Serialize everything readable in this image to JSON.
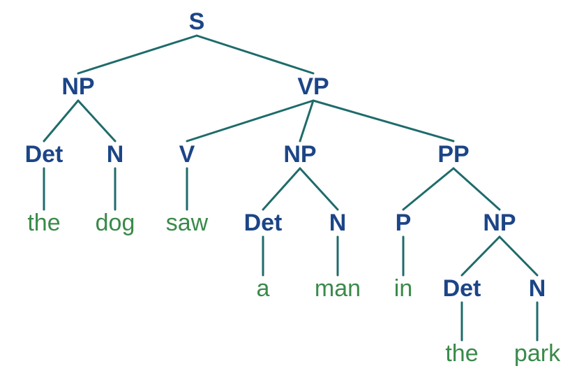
{
  "tree": {
    "nodes": [
      {
        "id": "s",
        "label": "S",
        "kind": "category"
      },
      {
        "id": "np1",
        "label": "NP",
        "kind": "category"
      },
      {
        "id": "vp",
        "label": "VP",
        "kind": "category"
      },
      {
        "id": "det1",
        "label": "Det",
        "kind": "category"
      },
      {
        "id": "n1",
        "label": "N",
        "kind": "category"
      },
      {
        "id": "v",
        "label": "V",
        "kind": "category"
      },
      {
        "id": "np2",
        "label": "NP",
        "kind": "category"
      },
      {
        "id": "pp",
        "label": "PP",
        "kind": "category"
      },
      {
        "id": "w_the1",
        "label": "the",
        "kind": "word"
      },
      {
        "id": "w_dog",
        "label": "dog",
        "kind": "word"
      },
      {
        "id": "w_saw",
        "label": "saw",
        "kind": "word"
      },
      {
        "id": "det2",
        "label": "Det",
        "kind": "category"
      },
      {
        "id": "n2",
        "label": "N",
        "kind": "category"
      },
      {
        "id": "p",
        "label": "P",
        "kind": "category"
      },
      {
        "id": "np3",
        "label": "NP",
        "kind": "category"
      },
      {
        "id": "w_a",
        "label": "a",
        "kind": "word"
      },
      {
        "id": "w_man",
        "label": "man",
        "kind": "word"
      },
      {
        "id": "w_in",
        "label": "in",
        "kind": "word"
      },
      {
        "id": "det3",
        "label": "Det",
        "kind": "category"
      },
      {
        "id": "n3",
        "label": "N",
        "kind": "category"
      },
      {
        "id": "w_the2",
        "label": "the",
        "kind": "word"
      },
      {
        "id": "w_park",
        "label": "park",
        "kind": "word"
      }
    ],
    "edges": [
      [
        "s",
        "np1"
      ],
      [
        "s",
        "vp"
      ],
      [
        "np1",
        "det1"
      ],
      [
        "np1",
        "n1"
      ],
      [
        "vp",
        "v"
      ],
      [
        "vp",
        "np2"
      ],
      [
        "vp",
        "pp"
      ],
      [
        "det1",
        "w_the1"
      ],
      [
        "n1",
        "w_dog"
      ],
      [
        "v",
        "w_saw"
      ],
      [
        "np2",
        "det2"
      ],
      [
        "np2",
        "n2"
      ],
      [
        "pp",
        "p"
      ],
      [
        "pp",
        "np3"
      ],
      [
        "det2",
        "w_a"
      ],
      [
        "n2",
        "w_man"
      ],
      [
        "p",
        "w_in"
      ],
      [
        "np3",
        "det3"
      ],
      [
        "np3",
        "n3"
      ],
      [
        "det3",
        "w_the2"
      ],
      [
        "n3",
        "w_park"
      ]
    ]
  },
  "colors": {
    "category": "#1c4587",
    "word": "#3a8a4a",
    "edge": "#1f6b6b"
  }
}
